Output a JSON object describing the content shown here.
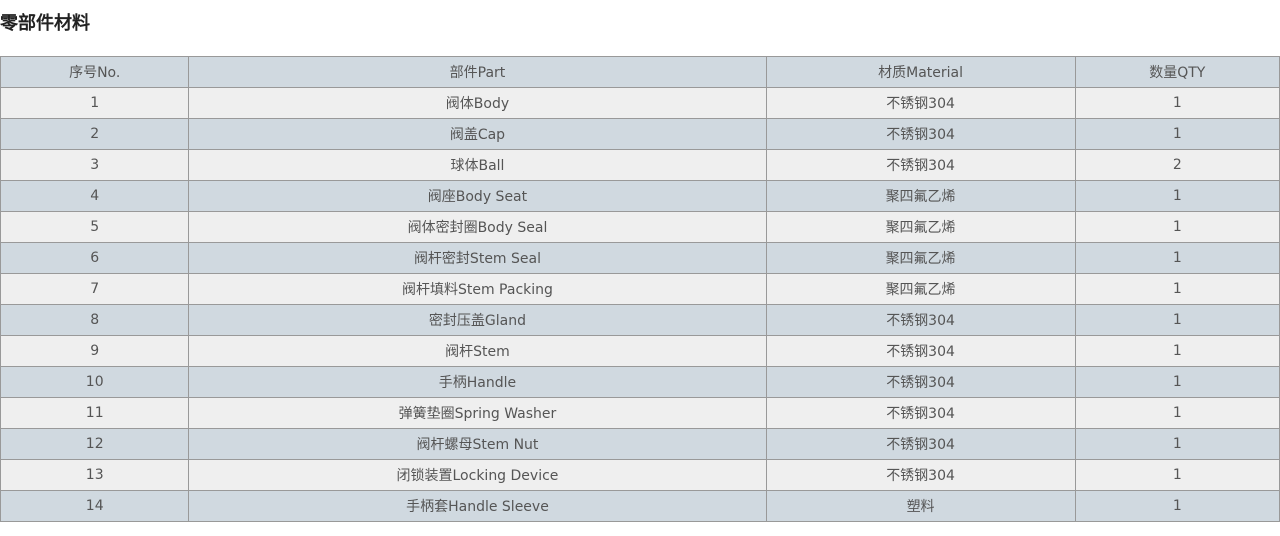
{
  "title": "零部件材料",
  "headers": [
    "序号No.",
    "部件Part",
    "材质Material",
    "数量QTY"
  ],
  "rows": [
    [
      "1",
      "阀体Body",
      "不锈钢304",
      "1"
    ],
    [
      "2",
      "阀盖Cap",
      "不锈钢304",
      "1"
    ],
    [
      "3",
      "球体Ball",
      "不锈钢304",
      "2"
    ],
    [
      "4",
      "阀座Body Seat",
      "聚四氟乙烯",
      "1"
    ],
    [
      "5",
      "阀体密封圈Body Seal",
      "聚四氟乙烯",
      "1"
    ],
    [
      "6",
      "阀杆密封Stem Seal",
      "聚四氟乙烯",
      "1"
    ],
    [
      "7",
      "阀杆填料Stem Packing",
      "聚四氟乙烯",
      "1"
    ],
    [
      "8",
      "密封压盖Gland",
      "不锈钢304",
      "1"
    ],
    [
      "9",
      "阀杆Stem",
      "不锈钢304",
      "1"
    ],
    [
      "10",
      "手柄Handle",
      "不锈钢304",
      "1"
    ],
    [
      "11",
      "弹簧垫圈Spring Washer",
      "不锈钢304",
      "1"
    ],
    [
      "12",
      "阀杆螺母Stem Nut",
      "不锈钢304",
      "1"
    ],
    [
      "13",
      "闭锁装置Locking Device",
      "不锈钢304",
      "1"
    ],
    [
      "14",
      "手柄套Handle Sleeve",
      "塑料",
      "1"
    ]
  ]
}
